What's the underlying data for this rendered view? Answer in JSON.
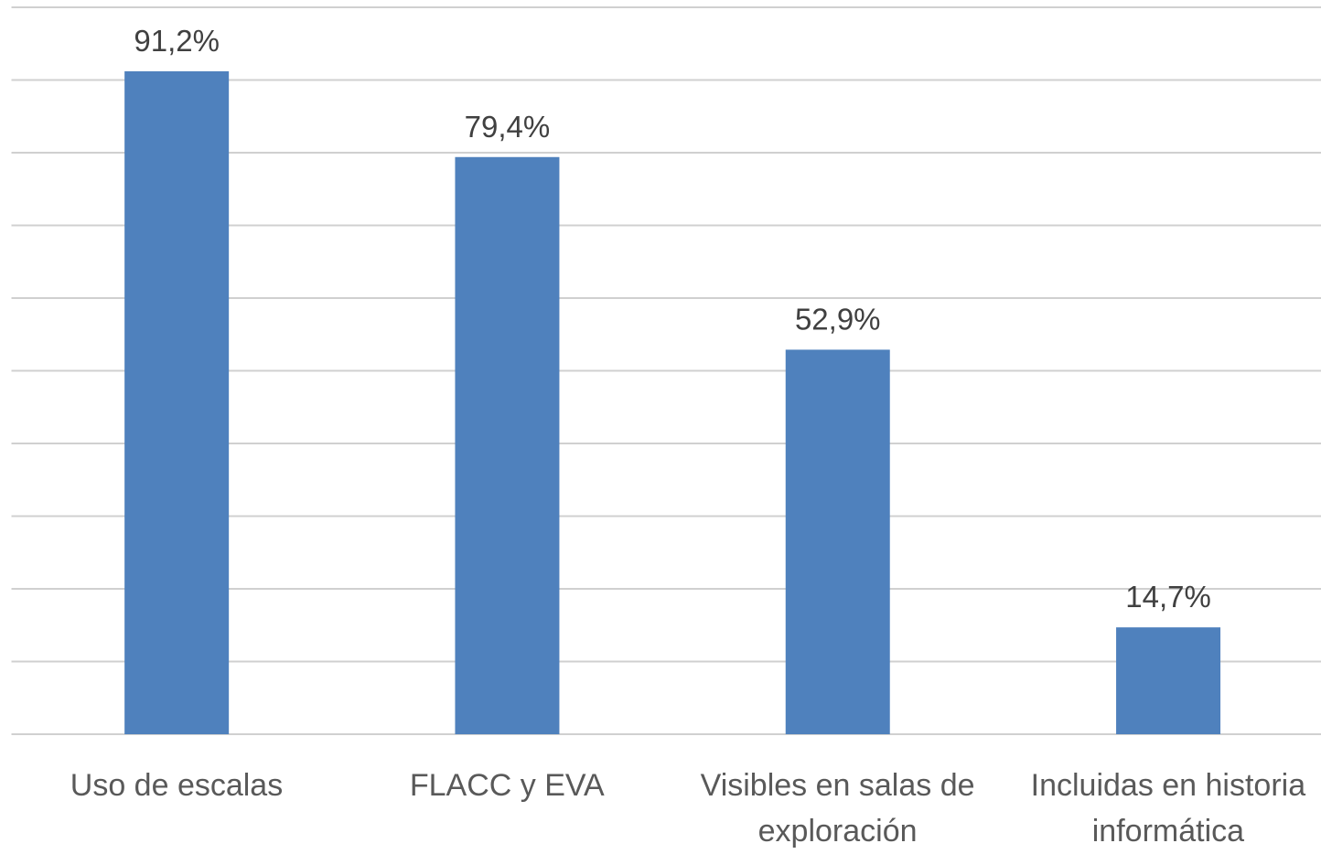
{
  "chart_data": {
    "type": "bar",
    "categories": [
      "Uso de escalas",
      "FLACC y EVA",
      "Visibles en salas de exploración",
      "Incluidas en historia informática"
    ],
    "values": [
      91.2,
      79.4,
      52.9,
      14.7
    ],
    "value_labels": [
      "91,2%",
      "79,4%",
      "52,9%",
      "14,7%"
    ],
    "color": "#4f81bd",
    "ylim": [
      0,
      100
    ],
    "yticks": [
      0,
      10,
      20,
      30,
      40,
      50,
      60,
      70,
      80,
      90,
      100
    ],
    "grid": true
  }
}
